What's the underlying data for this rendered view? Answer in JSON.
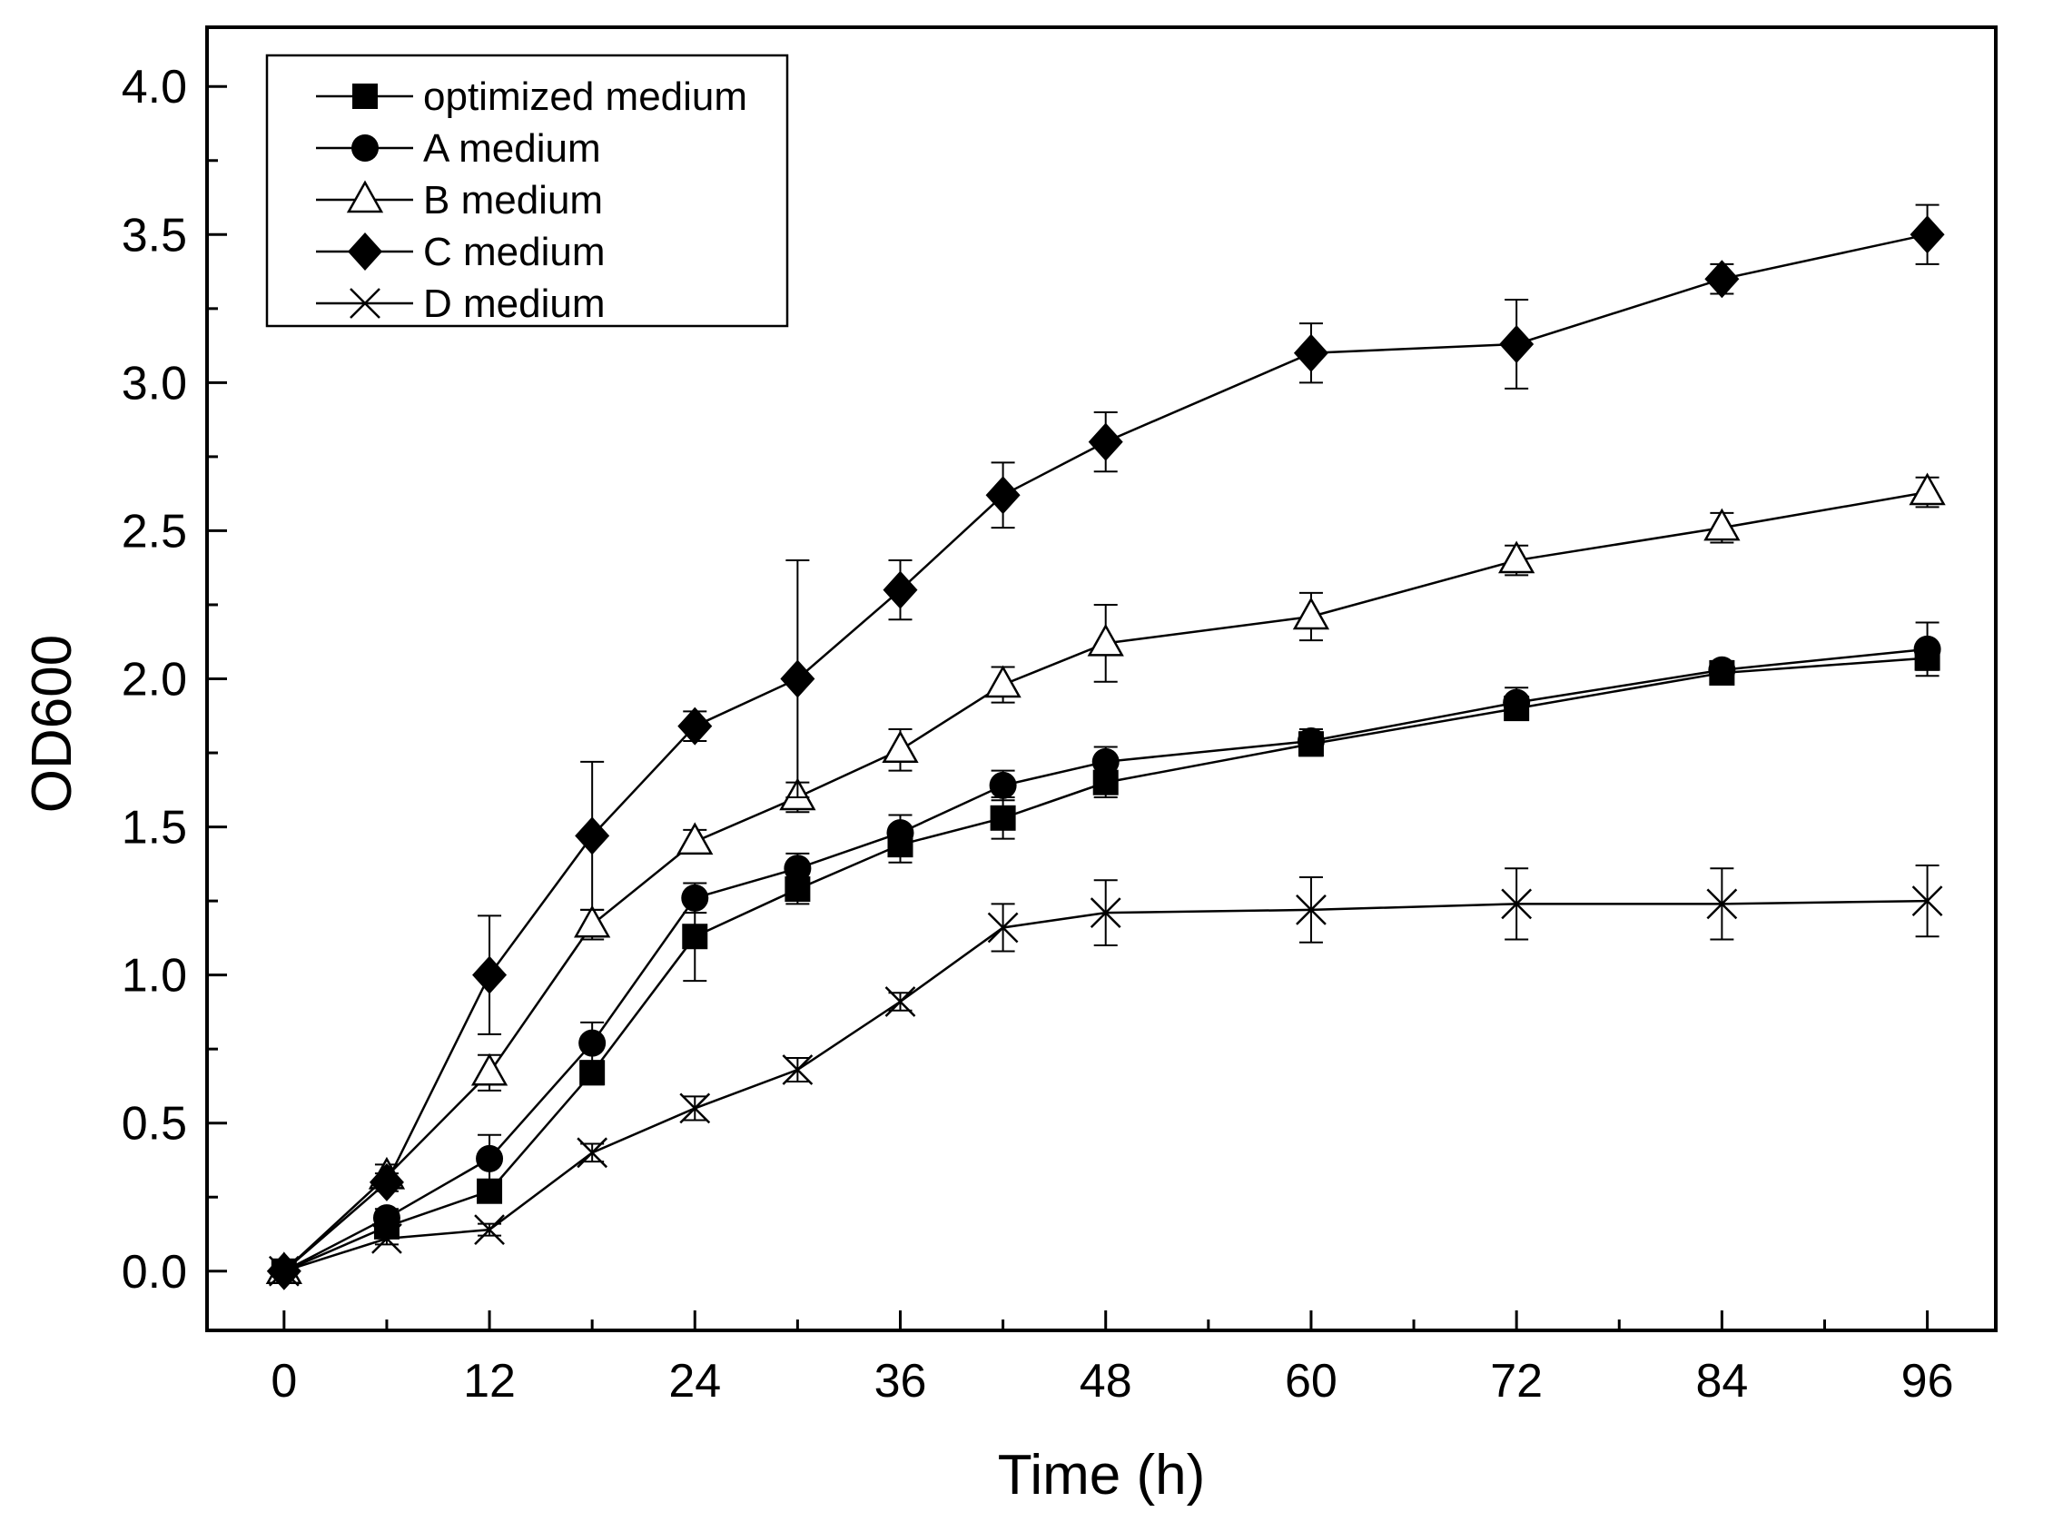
{
  "chart_data": {
    "type": "line",
    "title": "",
    "xlabel": "Time (h)",
    "ylabel": "OD600",
    "xlim": [
      -4.5,
      100
    ],
    "ylim": [
      -0.2,
      4.2
    ],
    "x_ticks": [
      0,
      12,
      24,
      36,
      48,
      60,
      72,
      84,
      96
    ],
    "x_tick_labels": [
      "0",
      "12",
      "24",
      "36",
      "48",
      "60",
      "72",
      "84",
      "96"
    ],
    "y_ticks": [
      0.0,
      0.5,
      1.0,
      1.5,
      2.0,
      2.5,
      3.0,
      3.5,
      4.0
    ],
    "y_tick_labels": [
      "0.0",
      "0.5",
      "1.0",
      "1.5",
      "2.0",
      "2.5",
      "3.0",
      "3.5",
      "4.0"
    ],
    "grid": false,
    "legend_position": "top-left",
    "x": [
      0,
      6,
      12,
      18,
      24,
      30,
      36,
      42,
      48,
      60,
      72,
      84,
      96
    ],
    "series": [
      {
        "name": "optimized medium",
        "marker": "square-filled",
        "values": [
          0.0,
          0.15,
          0.27,
          0.67,
          1.13,
          1.29,
          1.44,
          1.53,
          1.65,
          1.78,
          1.9,
          2.02,
          2.07
        ],
        "errors": [
          0.0,
          0.02,
          0.02,
          0.04,
          0.15,
          0.05,
          0.06,
          0.07,
          0.05,
          0.04,
          0.03,
          0.02,
          0.04
        ]
      },
      {
        "name": "A medium",
        "marker": "circle-filled",
        "values": [
          0.0,
          0.18,
          0.38,
          0.77,
          1.26,
          1.36,
          1.48,
          1.64,
          1.72,
          1.79,
          1.92,
          2.03,
          2.1
        ],
        "errors": [
          0.0,
          0.03,
          0.08,
          0.07,
          0.05,
          0.05,
          0.06,
          0.05,
          0.05,
          0.04,
          0.05,
          0.03,
          0.09
        ]
      },
      {
        "name": "B medium",
        "marker": "triangle-open",
        "values": [
          0.0,
          0.32,
          0.67,
          1.17,
          1.45,
          1.6,
          1.76,
          1.98,
          2.12,
          2.21,
          2.4,
          2.51,
          2.63
        ],
        "errors": [
          0.0,
          0.04,
          0.06,
          0.05,
          0.04,
          0.05,
          0.07,
          0.06,
          0.13,
          0.08,
          0.05,
          0.05,
          0.05
        ]
      },
      {
        "name": "C medium",
        "marker": "diamond-filled",
        "values": [
          0.0,
          0.3,
          1.0,
          1.47,
          1.84,
          2.0,
          2.3,
          2.62,
          2.8,
          3.1,
          3.13,
          3.35,
          3.5
        ],
        "errors": [
          0.0,
          0.03,
          0.2,
          0.25,
          0.05,
          0.4,
          0.1,
          0.11,
          0.1,
          0.1,
          0.15,
          0.05,
          0.1
        ]
      },
      {
        "name": "D medium",
        "marker": "x",
        "values": [
          0.0,
          0.11,
          0.14,
          0.4,
          0.55,
          0.68,
          0.91,
          1.16,
          1.21,
          1.22,
          1.24,
          1.24,
          1.25
        ],
        "errors": [
          0.0,
          0.02,
          0.02,
          0.03,
          0.04,
          0.04,
          0.03,
          0.08,
          0.11,
          0.11,
          0.12,
          0.12,
          0.12
        ]
      }
    ]
  }
}
